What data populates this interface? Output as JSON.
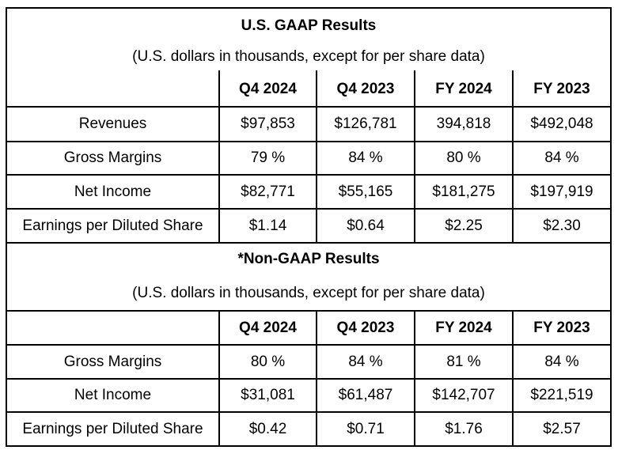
{
  "gaap": {
    "title": "U.S. GAAP Results",
    "subtitle": "(U.S. dollars in thousands, except for per share data)",
    "columns": [
      "Q4 2024",
      "Q4 2023",
      "FY 2024",
      "FY 2023"
    ],
    "rows": [
      {
        "label": "Revenues",
        "values": [
          "$97,853",
          "$126,781",
          "394,818",
          "$492,048"
        ]
      },
      {
        "label": "Gross Margins",
        "values": [
          "79 %",
          "84 %",
          "80 %",
          "84 %"
        ]
      },
      {
        "label": "Net Income",
        "values": [
          "$82,771",
          "$55,165",
          "$181,275",
          "$197,919"
        ]
      },
      {
        "label": "Earnings per Diluted Share",
        "values": [
          "$1.14",
          "$0.64",
          "$2.25",
          "$2.30"
        ]
      }
    ]
  },
  "non_gaap": {
    "title": "*Non-GAAP Results",
    "subtitle": "(U.S. dollars in thousands, except for per share data)",
    "columns": [
      "Q4 2024",
      "Q4 2023",
      "FY 2024",
      "FY 2023"
    ],
    "rows": [
      {
        "label": "Gross Margins",
        "values": [
          "80 %",
          "84 %",
          "81 %",
          "84 %"
        ]
      },
      {
        "label": "Net Income",
        "values": [
          "$31,081",
          "$61,487",
          "$142,707",
          "$221,519"
        ]
      },
      {
        "label": "Earnings per Diluted Share",
        "values": [
          "$0.42",
          "$0.71",
          "$1.76",
          "$2.57"
        ]
      }
    ]
  }
}
